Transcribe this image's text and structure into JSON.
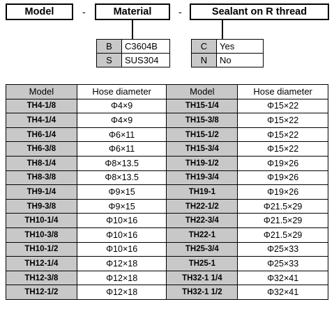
{
  "header": {
    "model": "Model",
    "material": "Material",
    "sealant": "Sealant on R thread",
    "dash1": "-",
    "dash2": "-"
  },
  "material_options": [
    {
      "code": "B",
      "value": "C3604B"
    },
    {
      "code": "S",
      "value": "SUS304"
    }
  ],
  "sealant_options": [
    {
      "code": "C",
      "value": "Yes"
    },
    {
      "code": "N",
      "value": "No"
    }
  ],
  "table": {
    "headers": [
      "Model",
      "Hose diameter",
      "Model",
      "Hose diameter"
    ],
    "rows": [
      [
        "TH4-1/8",
        "Φ4×9",
        "TH15-1/4",
        "Φ15×22"
      ],
      [
        "TH4-1/4",
        "Φ4×9",
        "TH15-3/8",
        "Φ15×22"
      ],
      [
        "TH6-1/4",
        "Φ6×11",
        "TH15-1/2",
        "Φ15×22"
      ],
      [
        "TH6-3/8",
        "Φ6×11",
        "TH15-3/4",
        "Φ15×22"
      ],
      [
        "TH8-1/4",
        "Φ8×13.5",
        "TH19-1/2",
        "Φ19×26"
      ],
      [
        "TH8-3/8",
        "Φ8×13.5",
        "TH19-3/4",
        "Φ19×26"
      ],
      [
        "TH9-1/4",
        "Φ9×15",
        "TH19-1",
        "Φ19×26"
      ],
      [
        "TH9-3/8",
        "Φ9×15",
        "TH22-1/2",
        "Φ21.5×29"
      ],
      [
        "TH10-1/4",
        "Φ10×16",
        "TH22-3/4",
        "Φ21.5×29"
      ],
      [
        "TH10-3/8",
        "Φ10×16",
        "TH22-1",
        "Φ21.5×29"
      ],
      [
        "TH10-1/2",
        "Φ10×16",
        "TH25-3/4",
        "Φ25×33"
      ],
      [
        "TH12-1/4",
        "Φ12×18",
        "TH25-1",
        "Φ25×33"
      ],
      [
        "TH12-3/8",
        "Φ12×18",
        "TH32-1 1/4",
        "Φ32×41"
      ],
      [
        "TH12-1/2",
        "Φ12×18",
        "TH32-1 1/2",
        "Φ32×41"
      ]
    ]
  }
}
